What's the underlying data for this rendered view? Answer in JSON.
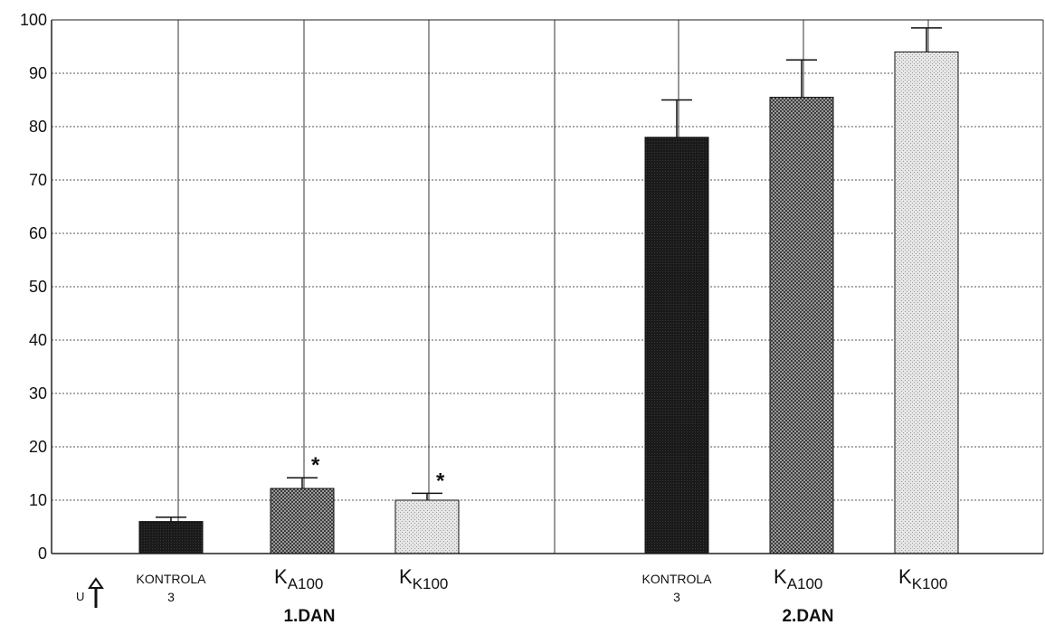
{
  "chart_data": {
    "type": "bar",
    "ylim": [
      0,
      100
    ],
    "yticks": [
      0,
      10,
      20,
      30,
      40,
      50,
      60,
      70,
      80,
      90,
      100
    ],
    "grid": true,
    "groups": [
      {
        "label": "1.DAN",
        "bars": [
          {
            "label_main": "KONTROLA",
            "label_sub": "3",
            "value": 6,
            "error": 0.8,
            "marker": "",
            "style": "dark"
          },
          {
            "label_main": "K",
            "label_sub": "A100",
            "value": 12.2,
            "error": 2,
            "marker": "*",
            "style": "medium"
          },
          {
            "label_main": "K",
            "label_sub": "K100",
            "value": 10,
            "error": 1.3,
            "marker": "*",
            "style": "light"
          }
        ]
      },
      {
        "label": "2.DAN",
        "bars": [
          {
            "label_main": "KONTROLA",
            "label_sub": "3",
            "value": 78,
            "error": 7,
            "marker": "",
            "style": "dark"
          },
          {
            "label_main": "K",
            "label_sub": "A100",
            "value": 85.5,
            "error": 7,
            "marker": "",
            "style": "medium"
          },
          {
            "label_main": "K",
            "label_sub": "K100",
            "value": 94,
            "error": 4.5,
            "marker": "",
            "style": "light"
          }
        ]
      }
    ],
    "annotation": {
      "symbol": "⇧",
      "letter": "U"
    }
  }
}
